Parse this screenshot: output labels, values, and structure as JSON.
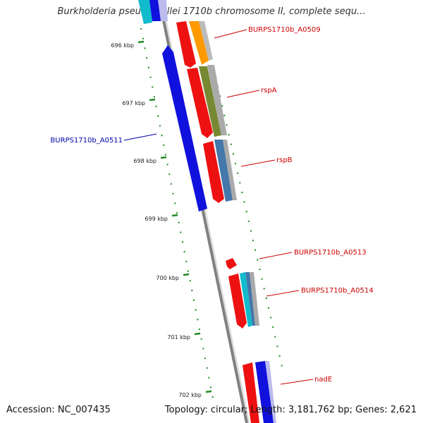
{
  "title": "Burkholderia pseudomallei 1710b chromosome II, complete sequ...",
  "footer": {
    "accession": "Accession: NC_007435",
    "summary": "Topology: circular; Length: 3,181,762 bp; Genes: 2,621"
  },
  "colors": {
    "forward": "#ee1111",
    "reverse": "#1111dd",
    "orange": "#ff9900",
    "olive": "#778833",
    "steel": "#4477aa",
    "cyan": "#11bbcc",
    "lavender": "#bbbbee",
    "grey": "#aaaaaa",
    "tick": "#228822",
    "label_forward": "#cc0000",
    "label_reverse": "#0000aa"
  },
  "ticks": [
    {
      "label": "696 kbp"
    },
    {
      "label": "697 kbp"
    },
    {
      "label": "698 kbp"
    },
    {
      "label": "699 kbp"
    },
    {
      "label": "700 kbp"
    },
    {
      "label": "701 kbp"
    },
    {
      "label": "702 kbp"
    }
  ],
  "gene_labels": [
    {
      "name": "BURPS1710b_A0509",
      "strand": "forward"
    },
    {
      "name": "rspA",
      "strand": "forward"
    },
    {
      "name": "BURPS1710b_A0511",
      "strand": "reverse"
    },
    {
      "name": "rspB",
      "strand": "forward"
    },
    {
      "name": "BURPS1710b_A0513",
      "strand": "forward"
    },
    {
      "name": "BURPS1710b_A0514",
      "strand": "forward"
    },
    {
      "name": "nadE",
      "strand": "forward"
    }
  ]
}
